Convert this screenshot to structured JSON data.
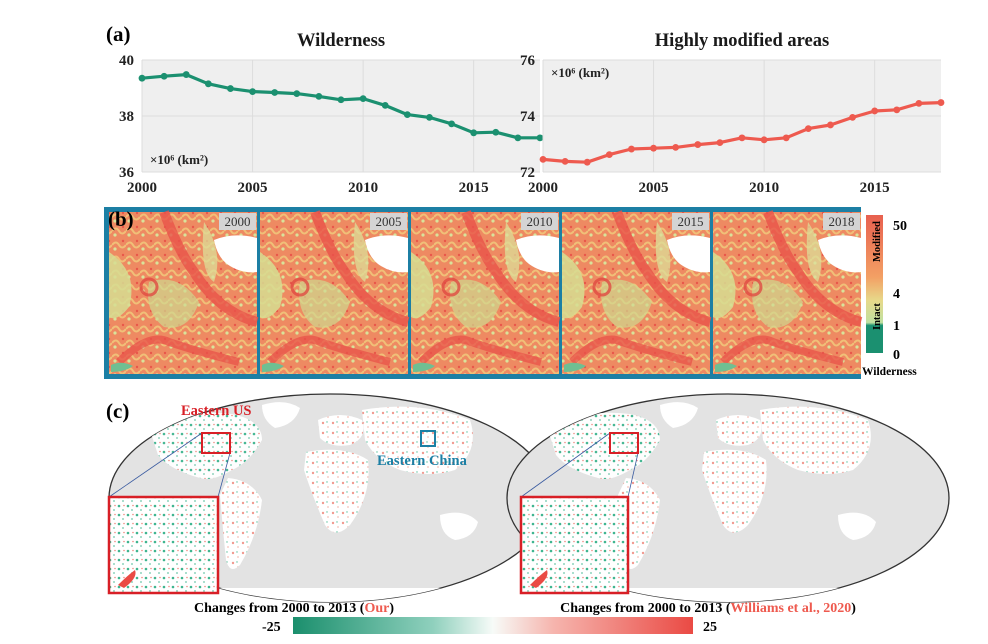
{
  "panels": {
    "a": {
      "label": "(a)"
    },
    "b": {
      "label": "(b)"
    },
    "c": {
      "label": "(c)"
    }
  },
  "chart_data": [
    {
      "type": "line",
      "title": "Wilderness",
      "unit_label": "×10⁶ (km²)",
      "x": [
        2000,
        2001,
        2002,
        2003,
        2004,
        2005,
        2006,
        2007,
        2008,
        2009,
        2010,
        2011,
        2012,
        2013,
        2014,
        2015,
        2016,
        2017,
        2018
      ],
      "values": [
        39.35,
        39.42,
        39.48,
        39.15,
        38.98,
        38.87,
        38.84,
        38.8,
        38.7,
        38.58,
        38.62,
        38.38,
        38.05,
        37.95,
        37.72,
        37.4,
        37.42,
        37.22,
        37.22
      ],
      "xlim": [
        2000,
        2018
      ],
      "ylim": [
        36,
        40
      ],
      "xticks": [
        "2000",
        "2005",
        "2010",
        "2015"
      ],
      "yticks": [
        "36",
        "38",
        "40"
      ],
      "color": "#1b9070",
      "grid": true
    },
    {
      "type": "line",
      "title": "Highly modified areas",
      "unit_label": "×10⁶ (km²)",
      "x": [
        2000,
        2001,
        2002,
        2003,
        2004,
        2005,
        2006,
        2007,
        2008,
        2009,
        2010,
        2011,
        2012,
        2013,
        2014,
        2015,
        2016,
        2017,
        2018
      ],
      "values": [
        72.45,
        72.38,
        72.35,
        72.62,
        72.82,
        72.85,
        72.88,
        72.98,
        73.05,
        73.22,
        73.15,
        73.22,
        73.55,
        73.68,
        73.95,
        74.18,
        74.22,
        74.45,
        74.48
      ],
      "xlim": [
        2000,
        2018
      ],
      "ylim": [
        72,
        76
      ],
      "xticks": [
        "2000",
        "2005",
        "2010",
        "2015"
      ],
      "yticks": [
        "72",
        "74",
        "76"
      ],
      "color": "#ee5a4f",
      "grid": true
    }
  ],
  "map_years": [
    "2000",
    "2005",
    "2010",
    "2015",
    "2018"
  ],
  "legend_b": {
    "ticks": [
      "50",
      "4",
      "1",
      "0"
    ],
    "modified": "Modified",
    "intact": "Intact",
    "wilderness": "Wilderness",
    "colors": {
      "modified": "#e8604f",
      "mid": "#f5b66b",
      "intact": "#bfe0a0",
      "wilderness": "#1b9070"
    }
  },
  "maps_c": {
    "eastern_us": "Eastern US",
    "eastern_china": "Eastern China",
    "caption_left_prefix": "Changes from 2000 to 2013 (",
    "caption_left_source": "Our",
    "caption_left_suffix": ")",
    "caption_right_prefix": "Changes from 2000 to 2013 (",
    "caption_right_source": "Williams et al., 2020",
    "caption_right_suffix": ")",
    "colorbar_min": "-25",
    "colorbar_max": "25"
  }
}
